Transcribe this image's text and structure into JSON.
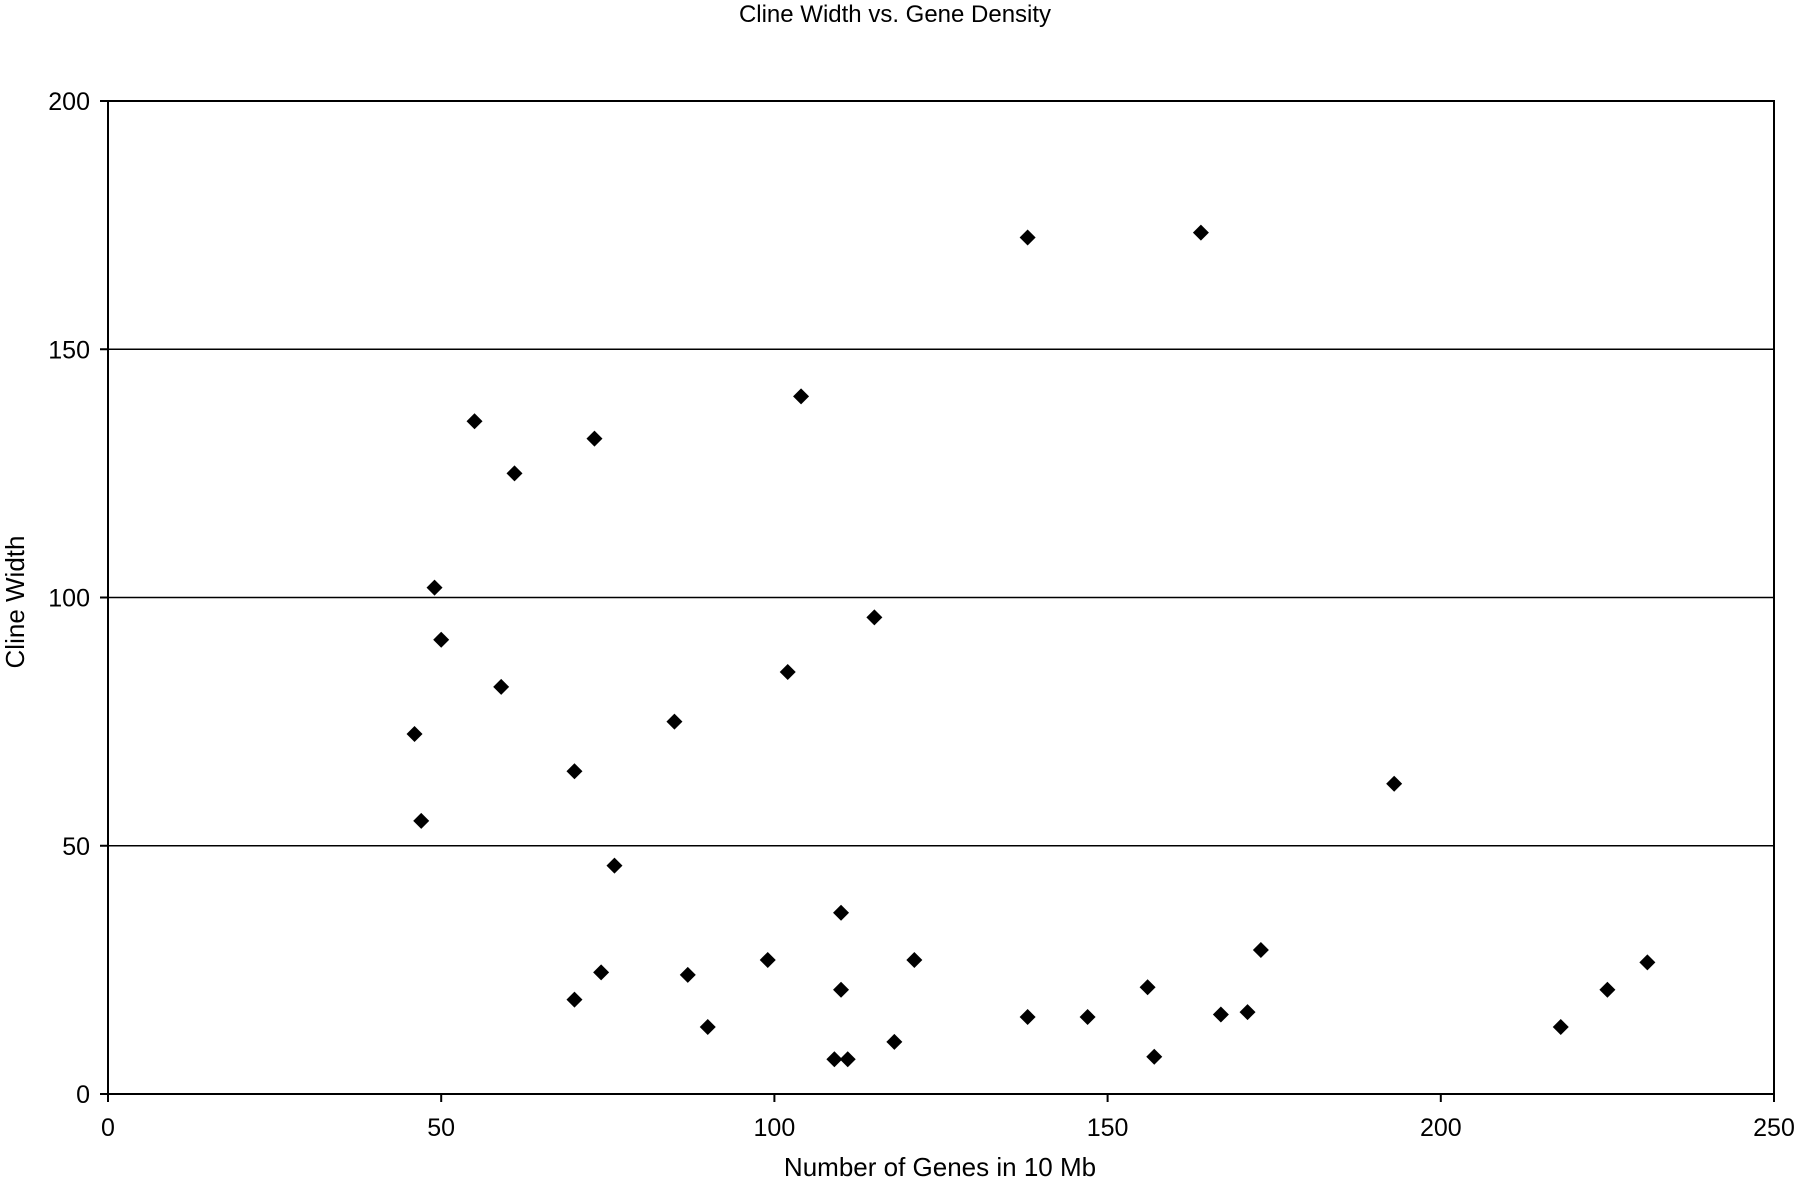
{
  "chart_data": {
    "type": "scatter",
    "title": "Cline Width vs. Gene Density",
    "xlabel": "Number of Genes in 10 Mb",
    "ylabel": "Cline Width",
    "xlim": [
      0,
      250
    ],
    "ylim": [
      0,
      200
    ],
    "x_ticks": [
      0,
      50,
      100,
      150,
      200,
      250
    ],
    "y_ticks": [
      0,
      50,
      100,
      150,
      200
    ],
    "grid": "horizontal",
    "legend": "none",
    "marker": "diamond",
    "marker_color": "#000000",
    "points": [
      {
        "x": 46,
        "y": 72.5
      },
      {
        "x": 47,
        "y": 55
      },
      {
        "x": 49,
        "y": 102
      },
      {
        "x": 50,
        "y": 91.5
      },
      {
        "x": 55,
        "y": 135.5
      },
      {
        "x": 59,
        "y": 82
      },
      {
        "x": 61,
        "y": 125
      },
      {
        "x": 70,
        "y": 65
      },
      {
        "x": 70,
        "y": 19
      },
      {
        "x": 73,
        "y": 132
      },
      {
        "x": 74,
        "y": 24.5
      },
      {
        "x": 76,
        "y": 46
      },
      {
        "x": 85,
        "y": 75
      },
      {
        "x": 87,
        "y": 24
      },
      {
        "x": 90,
        "y": 13.5
      },
      {
        "x": 99,
        "y": 27
      },
      {
        "x": 102,
        "y": 85
      },
      {
        "x": 104,
        "y": 140.5
      },
      {
        "x": 109,
        "y": 7
      },
      {
        "x": 110,
        "y": 36.5
      },
      {
        "x": 110,
        "y": 21
      },
      {
        "x": 111,
        "y": 7
      },
      {
        "x": 115,
        "y": 96
      },
      {
        "x": 118,
        "y": 10.5
      },
      {
        "x": 121,
        "y": 27
      },
      {
        "x": 138,
        "y": 172.5
      },
      {
        "x": 138,
        "y": 15.5
      },
      {
        "x": 147,
        "y": 15.5
      },
      {
        "x": 156,
        "y": 21.5
      },
      {
        "x": 157,
        "y": 7.5
      },
      {
        "x": 164,
        "y": 173.5
      },
      {
        "x": 167,
        "y": 16
      },
      {
        "x": 171,
        "y": 16.5
      },
      {
        "x": 173,
        "y": 29
      },
      {
        "x": 193,
        "y": 62.5
      },
      {
        "x": 218,
        "y": 13.5
      },
      {
        "x": 225,
        "y": 21
      },
      {
        "x": 231,
        "y": 26.5
      }
    ]
  }
}
